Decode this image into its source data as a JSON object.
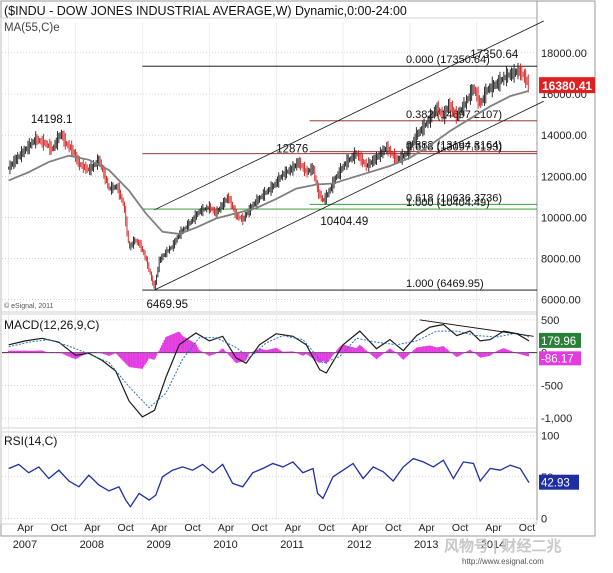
{
  "colors": {
    "price_up": "#1a1a1a",
    "price_down": "#d21b1b",
    "ma": "#7f7f7f",
    "macd_line": "#1a1a1a",
    "macd_signal": "#2a73b8",
    "macd_hist": "#e23be0",
    "rsi": "#1e2ea6",
    "fib_red": "#8b1a1a",
    "fib_green": "#1f8f1f",
    "last_price_bg": "#e02020",
    "macd_tag_bg": "#2a7f3a",
    "signal_tag_bg": "#e23be0",
    "rsi_tag_bg": "#1e2ea6",
    "grid": "#b8b8b8"
  },
  "chart_data": [
    {
      "type": "line",
      "title": "($INDU - DOW JONES INDUSTRIAL AVERAGE,W) Dynamic,0:00-24:00",
      "subtitle": "MA(55,C)e",
      "credit": "© eSignal, 2011",
      "x": [
        "2007",
        "2008",
        "2009",
        "2010",
        "2011",
        "2012",
        "2013",
        "2014"
      ],
      "x_month_labels": [
        "Apr",
        "Oct"
      ],
      "ylim": [
        5500,
        19500
      ],
      "y_ticks": [
        6000,
        8000,
        10000,
        12000,
        14000,
        16000,
        18000
      ],
      "y_tick_labels": [
        "6000.00",
        "8000.00",
        "10000.00",
        "12000.00",
        "14000.00",
        "16000.00",
        "18000.00"
      ],
      "series": [
        {
          "name": "$INDU",
          "points": [
            [
              2007.0,
              12400
            ],
            [
              2007.1,
              12800
            ],
            [
              2007.25,
              13300
            ],
            [
              2007.4,
              13800
            ],
            [
              2007.55,
              13600
            ],
            [
              2007.65,
              13300
            ],
            [
              2007.78,
              14100
            ],
            [
              2007.85,
              13600
            ],
            [
              2007.95,
              13300
            ],
            [
              2008.05,
              12600
            ],
            [
              2008.2,
              12300
            ],
            [
              2008.35,
              12800
            ],
            [
              2008.5,
              11400
            ],
            [
              2008.62,
              11500
            ],
            [
              2008.72,
              10600
            ],
            [
              2008.8,
              8500
            ],
            [
              2008.88,
              8900
            ],
            [
              2008.96,
              8700
            ],
            [
              2009.05,
              8000
            ],
            [
              2009.12,
              7200
            ],
            [
              2009.18,
              6550
            ],
            [
              2009.25,
              7900
            ],
            [
              2009.35,
              8300
            ],
            [
              2009.45,
              8600
            ],
            [
              2009.55,
              9200
            ],
            [
              2009.7,
              9700
            ],
            [
              2009.85,
              10300
            ],
            [
              2010.0,
              10500
            ],
            [
              2010.1,
              10200
            ],
            [
              2010.28,
              11000
            ],
            [
              2010.4,
              10100
            ],
            [
              2010.5,
              9900
            ],
            [
              2010.65,
              10600
            ],
            [
              2010.8,
              11100
            ],
            [
              2010.95,
              11500
            ],
            [
              2011.1,
              12100
            ],
            [
              2011.25,
              12400
            ],
            [
              2011.33,
              12700
            ],
            [
              2011.45,
              12200
            ],
            [
              2011.55,
              12400
            ],
            [
              2011.62,
              11300
            ],
            [
              2011.7,
              10800
            ],
            [
              2011.78,
              11200
            ],
            [
              2011.9,
              12000
            ],
            [
              2012.05,
              12700
            ],
            [
              2012.2,
              13100
            ],
            [
              2012.35,
              12500
            ],
            [
              2012.5,
              12900
            ],
            [
              2012.65,
              13400
            ],
            [
              2012.8,
              12800
            ],
            [
              2012.95,
              13100
            ],
            [
              2013.1,
              14000
            ],
            [
              2013.25,
              14600
            ],
            [
              2013.4,
              15300
            ],
            [
              2013.5,
              14900
            ],
            [
              2013.58,
              15500
            ],
            [
              2013.7,
              14900
            ],
            [
              2013.82,
              15500
            ],
            [
              2013.95,
              16300
            ],
            [
              2014.05,
              15500
            ],
            [
              2014.15,
              16200
            ],
            [
              2014.3,
              16500
            ],
            [
              2014.45,
              16900
            ],
            [
              2014.55,
              17000
            ],
            [
              2014.62,
              17150
            ],
            [
              2014.7,
              16900
            ],
            [
              2014.78,
              16380
            ]
          ]
        },
        {
          "name": "MA(55,C)e",
          "points": [
            [
              2007.0,
              11800
            ],
            [
              2007.3,
              12200
            ],
            [
              2007.6,
              12700
            ],
            [
              2007.9,
              13000
            ],
            [
              2008.2,
              12800
            ],
            [
              2008.5,
              12300
            ],
            [
              2008.8,
              11300
            ],
            [
              2009.05,
              10200
            ],
            [
              2009.3,
              9300
            ],
            [
              2009.55,
              9200
            ],
            [
              2009.8,
              9500
            ],
            [
              2010.1,
              9950
            ],
            [
              2010.4,
              10200
            ],
            [
              2010.7,
              10450
            ],
            [
              2011.0,
              10900
            ],
            [
              2011.3,
              11400
            ],
            [
              2011.6,
              11600
            ],
            [
              2011.85,
              11650
            ],
            [
              2012.1,
              11900
            ],
            [
              2012.4,
              12200
            ],
            [
              2012.7,
              12500
            ],
            [
              2013.0,
              12900
            ],
            [
              2013.3,
              13500
            ],
            [
              2013.6,
              14200
            ],
            [
              2013.9,
              14800
            ],
            [
              2014.2,
              15400
            ],
            [
              2014.5,
              15900
            ],
            [
              2014.78,
              16150
            ]
          ]
        }
      ],
      "annotations": [
        "14198.1",
        "6469.95",
        "12876",
        "10404.49",
        "17350.64"
      ],
      "fib_levels": [
        {
          "label": "0.000 (17350.64)",
          "value": 17350.64,
          "x_from": 2009.0
        },
        {
          "label": "0.382 (14697.2107)",
          "value": 14697.21,
          "x_from": 2011.5
        },
        {
          "label": "0.382 (13194.3164)",
          "value": 13194.32,
          "x_from": 2011.5
        },
        {
          "label": "0.618 (13097.5193)",
          "value": 13097.52,
          "x_from": 2009.0
        },
        {
          "label": "0.618 (10636.3736)",
          "value": 10636.37,
          "x_from": 2011.5
        },
        {
          "label": "1.000 (10404.49)",
          "value": 10404.49,
          "x_from": 2009.0
        },
        {
          "label": "1.000 (6469.95)",
          "value": 6469.95,
          "x_from": 2009.0
        }
      ],
      "channel": {
        "base": [
          [
            2009.18,
            6469.95
          ],
          [
            2014.78,
            15300
          ]
        ],
        "offset": 3900
      },
      "last_value": "16380.41"
    },
    {
      "type": "line",
      "title": "MACD(12,26,9,C)",
      "ylim": [
        -1150,
        560
      ],
      "y_ticks": [
        500,
        0,
        -500,
        -1000
      ],
      "y_tick_labels": [
        "500",
        "0",
        "-500",
        "-1,000"
      ],
      "series": [
        {
          "name": "MACD",
          "points": [
            [
              2007.0,
              120
            ],
            [
              2007.25,
              180
            ],
            [
              2007.5,
              220
            ],
            [
              2007.75,
              160
            ],
            [
              2008.0,
              -40
            ],
            [
              2008.2,
              -10
            ],
            [
              2008.4,
              -120
            ],
            [
              2008.6,
              -280
            ],
            [
              2008.8,
              -740
            ],
            [
              2009.0,
              -980
            ],
            [
              2009.18,
              -880
            ],
            [
              2009.35,
              -380
            ],
            [
              2009.55,
              120
            ],
            [
              2009.8,
              300
            ],
            [
              2010.0,
              180
            ],
            [
              2010.2,
              250
            ],
            [
              2010.4,
              -80
            ],
            [
              2010.55,
              -160
            ],
            [
              2010.75,
              120
            ],
            [
              2011.0,
              290
            ],
            [
              2011.25,
              250
            ],
            [
              2011.45,
              120
            ],
            [
              2011.65,
              -260
            ],
            [
              2011.75,
              -310
            ],
            [
              2012.0,
              120
            ],
            [
              2012.25,
              330
            ],
            [
              2012.5,
              60
            ],
            [
              2012.7,
              200
            ],
            [
              2012.9,
              30
            ],
            [
              2013.1,
              260
            ],
            [
              2013.3,
              390
            ],
            [
              2013.5,
              430
            ],
            [
              2013.7,
              260
            ],
            [
              2013.9,
              330
            ],
            [
              2014.05,
              180
            ],
            [
              2014.2,
              200
            ],
            [
              2014.4,
              330
            ],
            [
              2014.6,
              290
            ],
            [
              2014.78,
              180
            ]
          ]
        },
        {
          "name": "Signal",
          "points": [
            [
              2007.0,
              90
            ],
            [
              2007.3,
              160
            ],
            [
              2007.6,
              200
            ],
            [
              2007.9,
              100
            ],
            [
              2008.2,
              -20
            ],
            [
              2008.5,
              -150
            ],
            [
              2008.8,
              -520
            ],
            [
              2009.1,
              -840
            ],
            [
              2009.35,
              -620
            ],
            [
              2009.6,
              -100
            ],
            [
              2009.85,
              230
            ],
            [
              2010.1,
              230
            ],
            [
              2010.4,
              80
            ],
            [
              2010.6,
              -80
            ],
            [
              2010.85,
              150
            ],
            [
              2011.1,
              260
            ],
            [
              2011.4,
              200
            ],
            [
              2011.7,
              -160
            ],
            [
              2011.95,
              -60
            ],
            [
              2012.2,
              220
            ],
            [
              2012.5,
              160
            ],
            [
              2012.8,
              120
            ],
            [
              2013.1,
              180
            ],
            [
              2013.4,
              330
            ],
            [
              2013.7,
              330
            ],
            [
              2014.0,
              260
            ],
            [
              2014.3,
              240
            ],
            [
              2014.6,
              300
            ],
            [
              2014.78,
              240
            ]
          ]
        }
      ],
      "divergence_line": [
        [
          2013.15,
          500
        ],
        [
          2014.85,
          250
        ]
      ],
      "last_values": [
        "179.96",
        "-86.17"
      ]
    },
    {
      "type": "line",
      "title": "RSI(14,C)",
      "ylim": [
        -2,
        104
      ],
      "y_ticks": [
        100,
        50,
        0
      ],
      "y_tick_labels": [
        "100",
        "50",
        "0"
      ],
      "series": [
        {
          "name": "RSI",
          "points": [
            [
              2007.0,
              60
            ],
            [
              2007.15,
              65
            ],
            [
              2007.3,
              55
            ],
            [
              2007.45,
              62
            ],
            [
              2007.6,
              48
            ],
            [
              2007.75,
              58
            ],
            [
              2007.9,
              45
            ],
            [
              2008.05,
              38
            ],
            [
              2008.2,
              52
            ],
            [
              2008.35,
              40
            ],
            [
              2008.5,
              33
            ],
            [
              2008.65,
              38
            ],
            [
              2008.75,
              22
            ],
            [
              2008.82,
              14
            ],
            [
              2008.95,
              30
            ],
            [
              2009.1,
              22
            ],
            [
              2009.2,
              28
            ],
            [
              2009.3,
              50
            ],
            [
              2009.45,
              58
            ],
            [
              2009.6,
              62
            ],
            [
              2009.75,
              58
            ],
            [
              2009.9,
              65
            ],
            [
              2010.05,
              55
            ],
            [
              2010.2,
              65
            ],
            [
              2010.35,
              42
            ],
            [
              2010.5,
              38
            ],
            [
              2010.65,
              55
            ],
            [
              2010.8,
              60
            ],
            [
              2010.95,
              66
            ],
            [
              2011.1,
              62
            ],
            [
              2011.25,
              68
            ],
            [
              2011.4,
              55
            ],
            [
              2011.55,
              60
            ],
            [
              2011.62,
              30
            ],
            [
              2011.7,
              24
            ],
            [
              2011.85,
              50
            ],
            [
              2012.0,
              58
            ],
            [
              2012.15,
              66
            ],
            [
              2012.3,
              48
            ],
            [
              2012.45,
              62
            ],
            [
              2012.6,
              56
            ],
            [
              2012.75,
              45
            ],
            [
              2012.9,
              62
            ],
            [
              2013.05,
              72
            ],
            [
              2013.2,
              68
            ],
            [
              2013.35,
              62
            ],
            [
              2013.5,
              70
            ],
            [
              2013.65,
              48
            ],
            [
              2013.8,
              68
            ],
            [
              2013.95,
              66
            ],
            [
              2014.05,
              45
            ],
            [
              2014.2,
              60
            ],
            [
              2014.35,
              58
            ],
            [
              2014.5,
              64
            ],
            [
              2014.65,
              60
            ],
            [
              2014.78,
              42.93
            ]
          ]
        }
      ],
      "last_value": "42.93"
    }
  ],
  "x_years": [
    "2007",
    "2008",
    "2009",
    "2010",
    "2011",
    "2012",
    "2013",
    "2014"
  ],
  "watermark": {
    "logo_text": "风物号 | 财经二兆",
    "url": "http://www.esignal.com"
  }
}
